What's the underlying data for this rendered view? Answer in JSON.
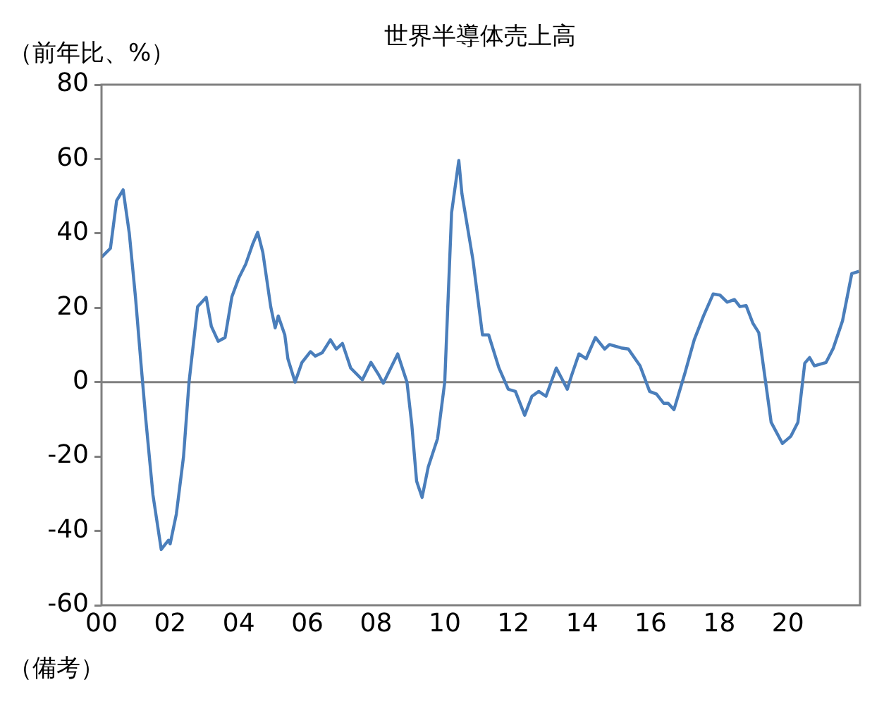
{
  "chart_data": {
    "type": "line",
    "title": "世界半導体売上高",
    "ylabel": "（前年比、%）",
    "annotations": [
      "（備考）"
    ],
    "xlim": [
      2000,
      2022.1
    ],
    "ylim": [
      -60,
      80
    ],
    "xticks": [
      {
        "value": 2000,
        "label": "00"
      },
      {
        "value": 2002,
        "label": "02"
      },
      {
        "value": 2004,
        "label": "04"
      },
      {
        "value": 2006,
        "label": "06"
      },
      {
        "value": 2008,
        "label": "08"
      },
      {
        "value": 2010,
        "label": "10"
      },
      {
        "value": 2012,
        "label": "12"
      },
      {
        "value": 2014,
        "label": "14"
      },
      {
        "value": 2016,
        "label": "16"
      },
      {
        "value": 2018,
        "label": "18"
      },
      {
        "value": 2020,
        "label": "20"
      }
    ],
    "yticks": [
      -60,
      -40,
      -20,
      0,
      20,
      40,
      60,
      80
    ],
    "grid": false,
    "marker": "none",
    "line_style": "solid",
    "ref_lines": [
      {
        "axis": "y",
        "value": 0,
        "color": "#808080"
      }
    ],
    "series": [
      {
        "color": "#4a7ebb",
        "x": [
          2000.0,
          2000.26,
          2000.44,
          2000.63,
          2000.81,
          2000.99,
          2001.15,
          2001.29,
          2001.5,
          2001.74,
          2001.95,
          2002.0,
          2002.18,
          2002.39,
          2002.55,
          2002.8,
          2003.05,
          2003.2,
          2003.4,
          2003.6,
          2003.8,
          2004.0,
          2004.2,
          2004.4,
          2004.55,
          2004.7,
          2004.93,
          2005.06,
          2005.15,
          2005.34,
          2005.43,
          2005.64,
          2005.84,
          2006.09,
          2006.23,
          2006.43,
          2006.67,
          2006.84,
          2007.02,
          2007.26,
          2007.6,
          2007.85,
          2008.08,
          2008.21,
          2008.63,
          2008.9,
          2009.04,
          2009.18,
          2009.34,
          2009.52,
          2009.79,
          2010.0,
          2010.2,
          2010.41,
          2010.5,
          2010.82,
          2011.1,
          2011.28,
          2011.58,
          2011.85,
          2012.06,
          2012.33,
          2012.54,
          2012.74,
          2012.95,
          2013.25,
          2013.43,
          2013.57,
          2013.7,
          2013.91,
          2014.12,
          2014.39,
          2014.66,
          2014.8,
          2015.14,
          2015.35,
          2015.69,
          2015.97,
          2016.17,
          2016.38,
          2016.51,
          2016.68,
          2017.0,
          2017.27,
          2017.54,
          2017.82,
          2018.02,
          2018.23,
          2018.44,
          2018.6,
          2018.78,
          2018.98,
          2019.15,
          2019.33,
          2019.51,
          2019.84,
          2020.08,
          2020.29,
          2020.49,
          2020.63,
          2020.77,
          2021.11,
          2021.32,
          2021.59,
          2021.86,
          2022.07
        ],
        "values": [
          33.6,
          36,
          48.8,
          51.7,
          40,
          22.8,
          5,
          -10,
          -30.4,
          -45,
          -42.5,
          -43.5,
          -35.5,
          -20,
          0,
          20.3,
          22.8,
          15,
          11,
          12,
          23,
          28,
          31.7,
          37,
          40.3,
          34.9,
          20.3,
          14.6,
          17.8,
          12.7,
          6.3,
          0,
          5.3,
          8.2,
          7,
          7.9,
          11.4,
          8.9,
          10.4,
          3.8,
          0.6,
          5.3,
          1.9,
          -0.3,
          7.6,
          0,
          -11.4,
          -26.6,
          -31,
          -22.8,
          -15.2,
          0,
          45.6,
          59.6,
          50.7,
          33,
          12.7,
          12.7,
          3.8,
          -1.9,
          -2.5,
          -8.9,
          -3.8,
          -2.5,
          -3.8,
          3.8,
          0.6,
          -1.9,
          1.9,
          7.6,
          6.3,
          12,
          8.9,
          10.1,
          9.2,
          8.9,
          4.4,
          -2.5,
          -3.2,
          -5.7,
          -5.7,
          -7.4,
          2.5,
          11.4,
          17.8,
          23.7,
          23.4,
          21.5,
          22.2,
          20.3,
          20.6,
          15.8,
          13.3,
          1.3,
          -10.8,
          -16.5,
          -14.6,
          -10.8,
          5.1,
          6.6,
          4.4,
          5.3,
          9.1,
          16.5,
          29.2,
          29.8
        ]
      }
    ]
  }
}
